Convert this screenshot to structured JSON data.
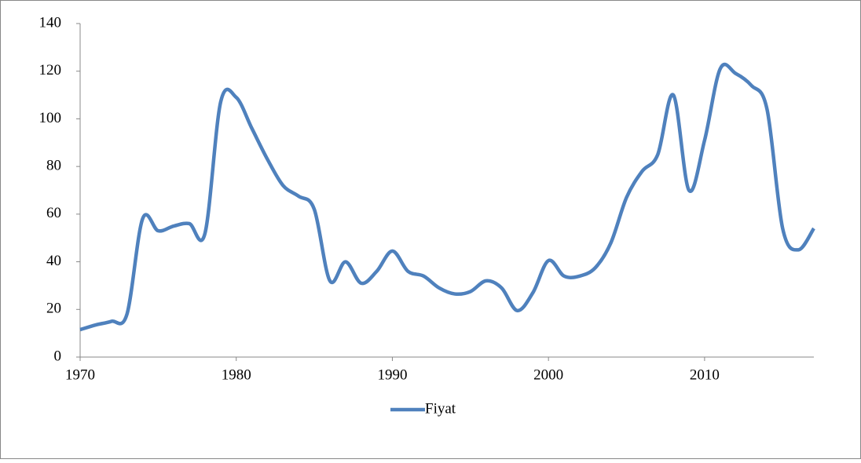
{
  "chart_data": {
    "type": "line",
    "x": [
      1970,
      1971,
      1972,
      1973,
      1974,
      1975,
      1976,
      1977,
      1978,
      1979,
      1980,
      1981,
      1982,
      1983,
      1984,
      1985,
      1986,
      1987,
      1988,
      1989,
      1990,
      1991,
      1992,
      1993,
      1994,
      1995,
      1996,
      1997,
      1998,
      1999,
      2000,
      2001,
      2002,
      2003,
      2004,
      2005,
      2006,
      2007,
      2008,
      2009,
      2010,
      2011,
      2012,
      2013,
      2014,
      2015,
      2016,
      2017
    ],
    "series": [
      {
        "name": "Fiyat",
        "color": "#4f81bd",
        "values": [
          11.5,
          13.5,
          15,
          18,
          58,
          53,
          55,
          56,
          52,
          107,
          109,
          96,
          83,
          72,
          67.5,
          62,
          32,
          40,
          31,
          36,
          44.5,
          36,
          34,
          29,
          26.5,
          27.5,
          32,
          29,
          19.5,
          27,
          40.5,
          34,
          34,
          37.5,
          48,
          67,
          78,
          85,
          110,
          70,
          91,
          121,
          119,
          114,
          104,
          54,
          45,
          54
        ]
      }
    ],
    "xlim": [
      1970,
      2017
    ],
    "xticks": [
      1970,
      1980,
      1990,
      2000,
      2010
    ],
    "ylim": [
      0,
      140
    ],
    "yticks": [
      0,
      20,
      40,
      60,
      80,
      100,
      120,
      140
    ],
    "grid": false,
    "legend": "bottom"
  }
}
